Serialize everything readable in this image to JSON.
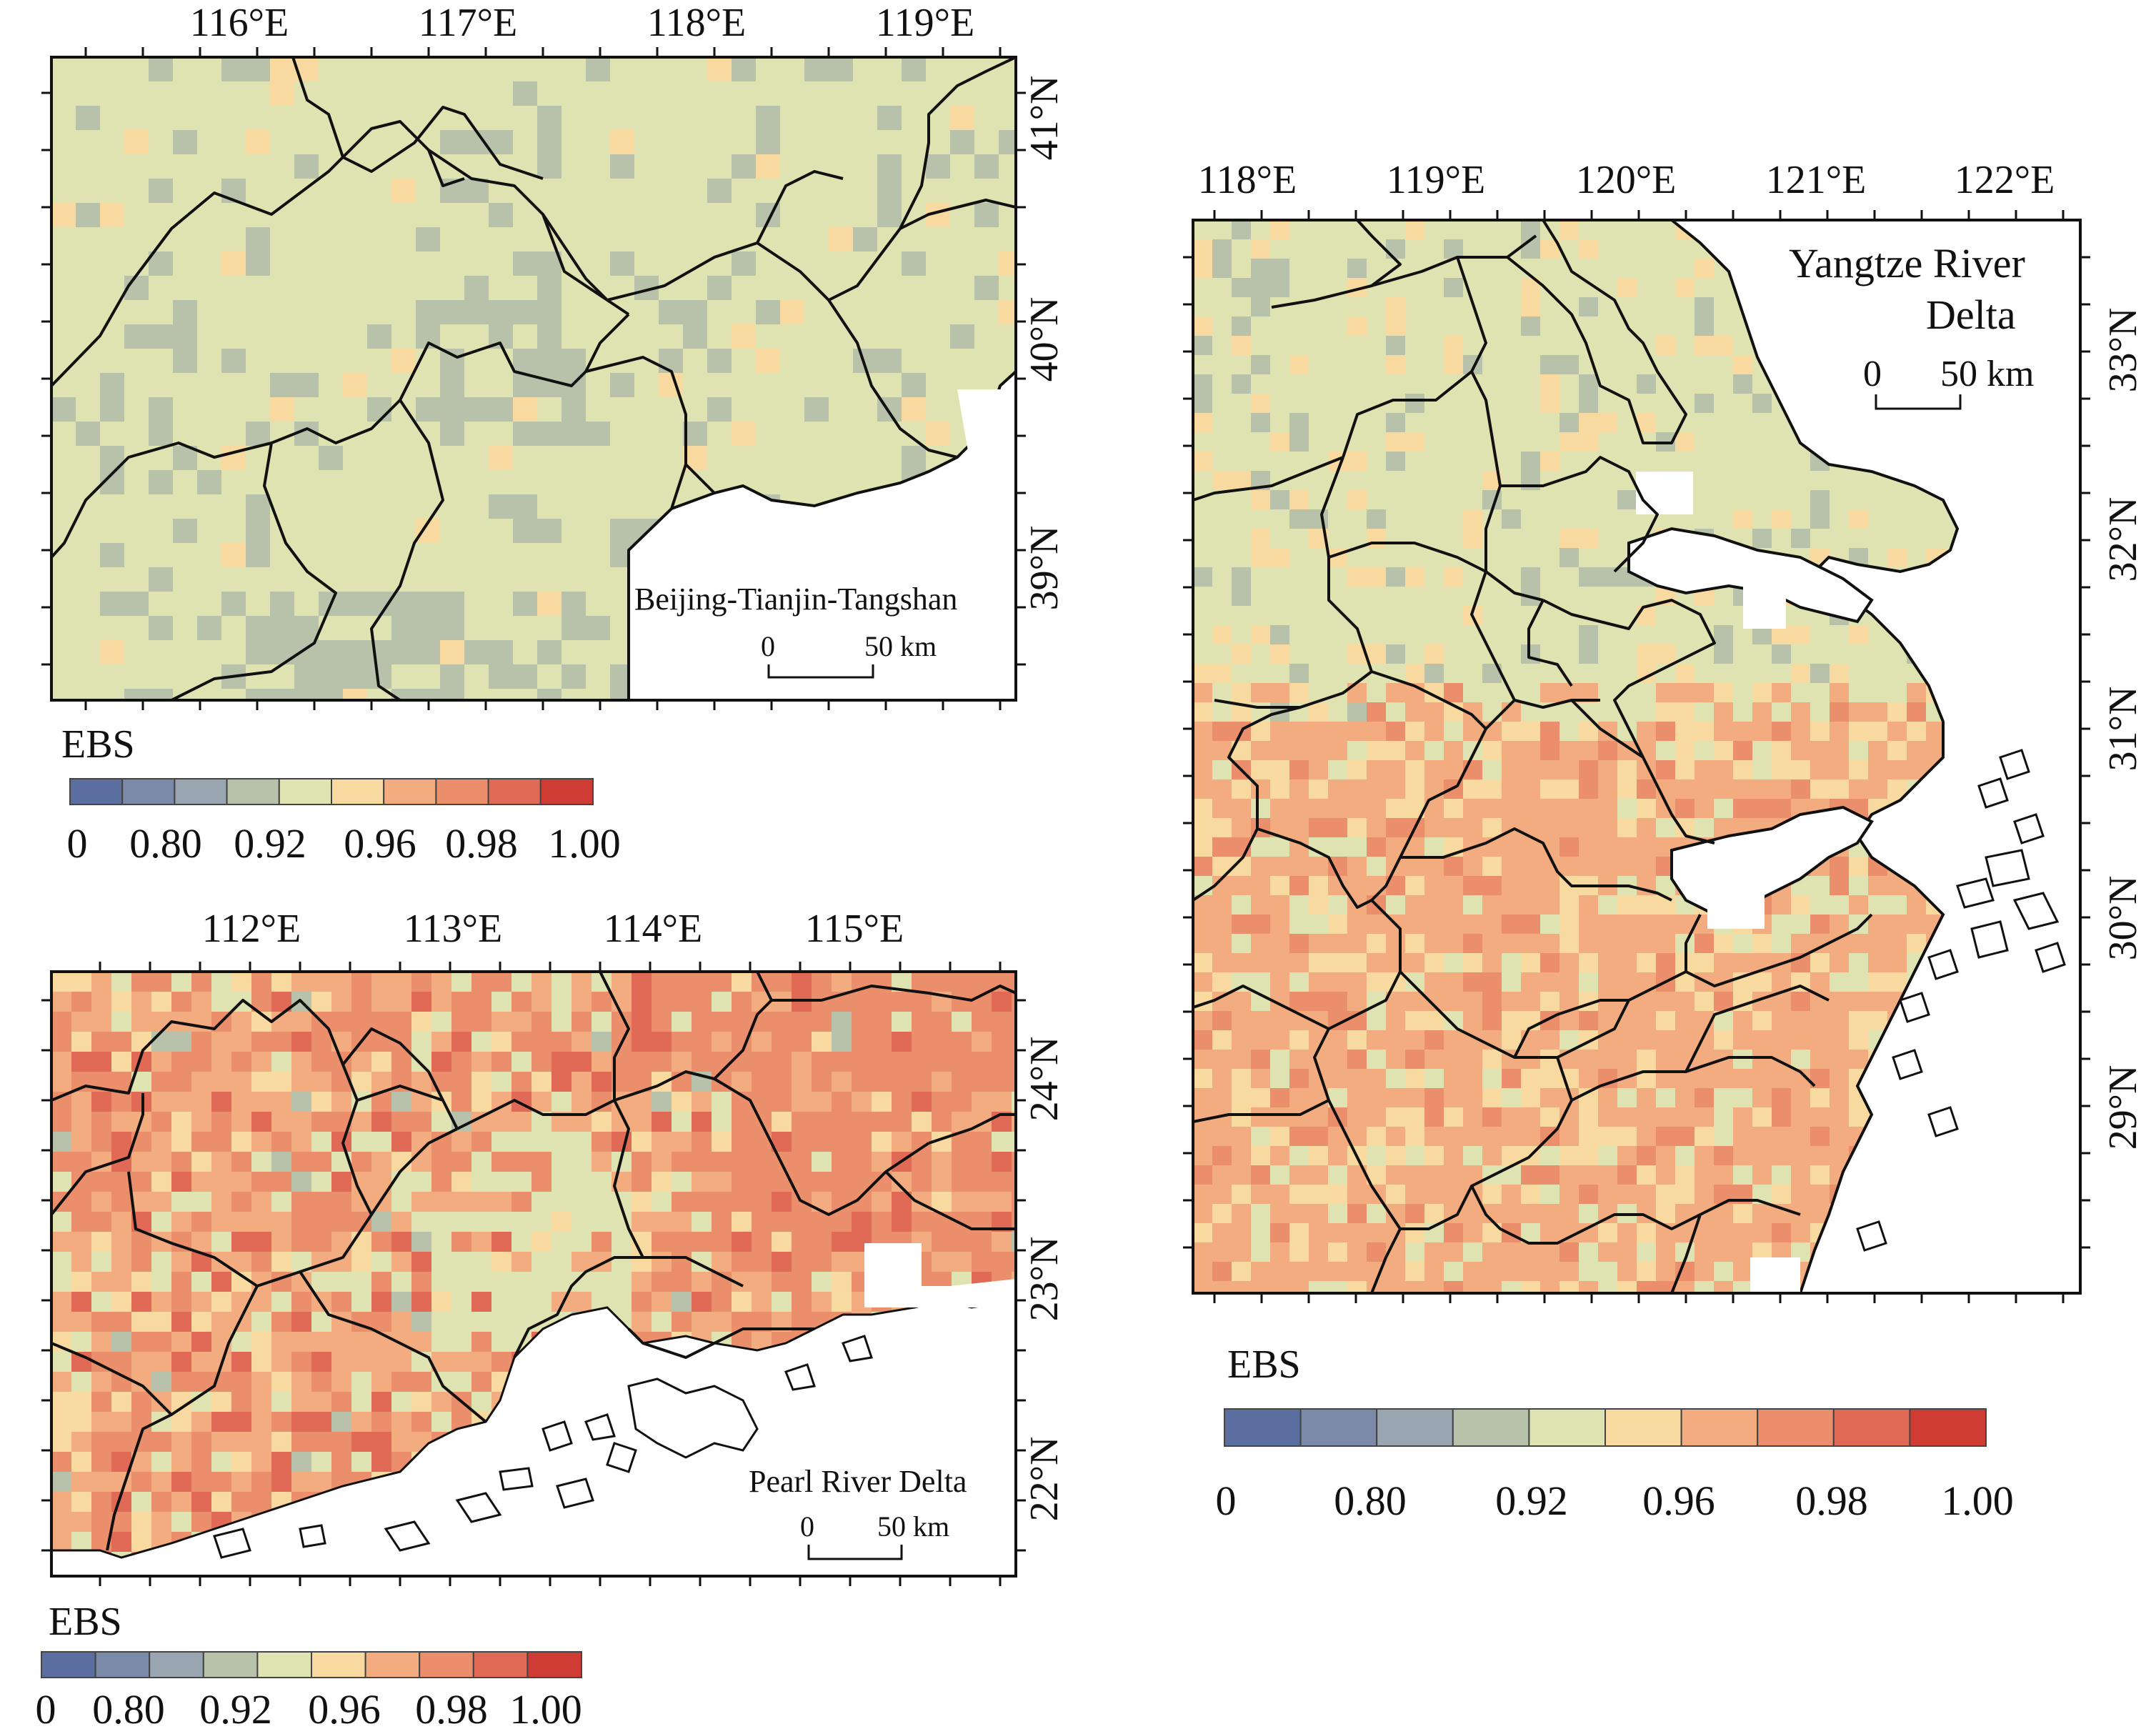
{
  "colors": {
    "scale": [
      "#5a6fa0",
      "#7a8aa8",
      "#9aa5b2",
      "#b8c2ab",
      "#dfe3b2",
      "#f8d9a0",
      "#f2ac80",
      "#ea8e6c",
      "#e06a56",
      "#cf3c34"
    ],
    "land_default": "#dfe3b2",
    "boundary": "#111111"
  },
  "legend": {
    "title": "EBS",
    "tick_labels": [
      "0",
      "0.80",
      "0.92",
      "0.96",
      "0.98",
      "1.00"
    ]
  },
  "maps": [
    {
      "id": "bt",
      "name": "Beijing-Tianjin-Tangshan",
      "lon_labels": [
        "116°E",
        "117°E",
        "118°E",
        "119°E"
      ],
      "lat_labels": [
        "41°N",
        "40°N",
        "39°N"
      ],
      "scale_label": "50 km",
      "scale_zero": "0",
      "class_weights": [
        0,
        0,
        0,
        0.14,
        0.82,
        0.04,
        0,
        0,
        0,
        0
      ]
    },
    {
      "id": "prd",
      "name": "Pearl River Delta",
      "lon_labels": [
        "112°E",
        "113°E",
        "114°E",
        "115°E"
      ],
      "lat_labels": [
        "24°N",
        "23°N",
        "22°N"
      ],
      "scale_label": "50 km",
      "scale_zero": "0",
      "class_weights": [
        0,
        0,
        0,
        0.03,
        0.14,
        0.13,
        0.3,
        0.3,
        0.1,
        0
      ]
    },
    {
      "id": "yrd",
      "name_line1": "Yangtze River",
      "name_line2": "Delta",
      "lon_labels": [
        "118°E",
        "119°E",
        "120°E",
        "121°E",
        "122°E"
      ],
      "lat_labels": [
        "33°N",
        "32°N",
        "31°N",
        "30°N",
        "29°N"
      ],
      "scale_label": "50 km",
      "scale_zero": "0",
      "class_weights": [
        0,
        0,
        0,
        0.05,
        0.4,
        0.2,
        0.3,
        0.05,
        0,
        0
      ]
    }
  ]
}
